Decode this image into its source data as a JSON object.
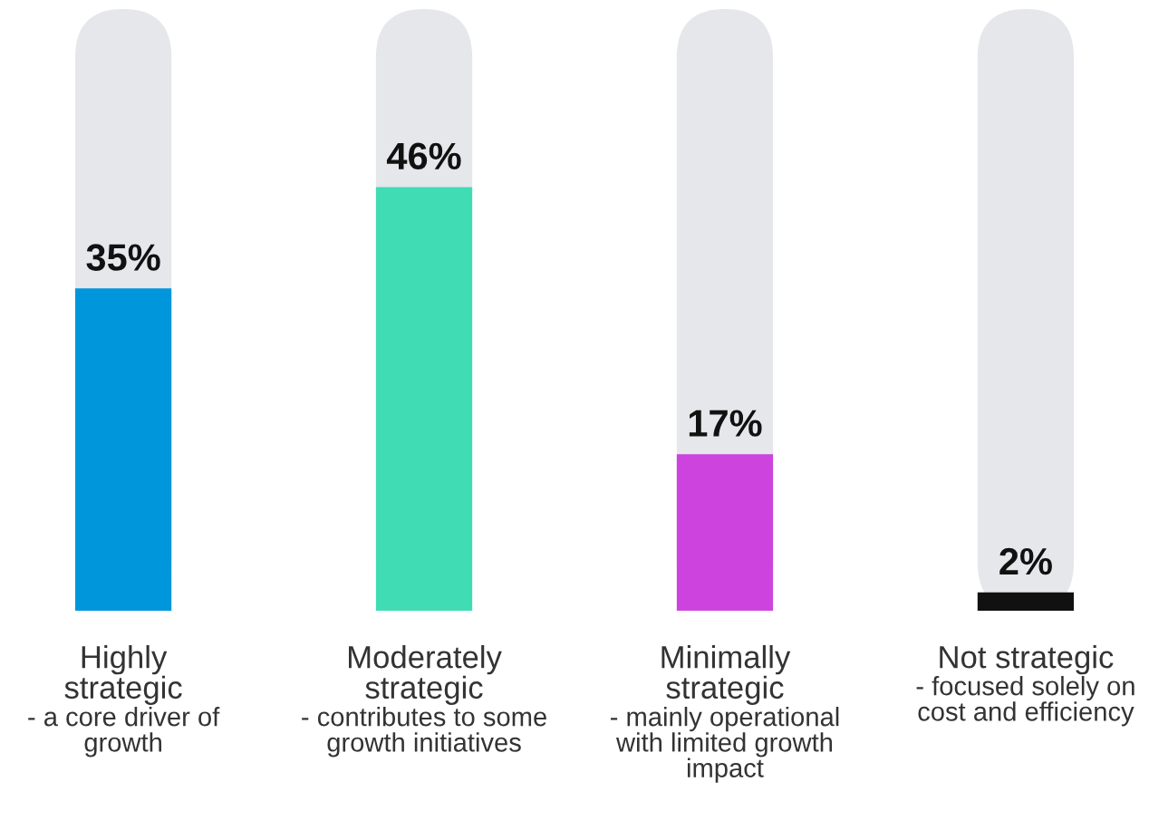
{
  "chart_data": {
    "type": "bar",
    "categories": [
      "Highly\nstrategic",
      "Moderately\nstrategic",
      "Minimally\nstrategic",
      "Not strategic"
    ],
    "values": [
      35,
      46,
      17,
      2
    ],
    "colors": [
      "#0096dc",
      "#40dcb4",
      "#cc44dd",
      "#111111"
    ],
    "data_labels": true,
    "value_labels": [
      "35%",
      "46%",
      "17%",
      "2%"
    ],
    "annotations": [
      "- a core driver of\ngrowth",
      "- contributes to some\ngrowth initiatives",
      "- mainly operational\nwith limited growth\nimpact",
      "- focused solely on\ncost and efficiency"
    ],
    "legend": false
  }
}
